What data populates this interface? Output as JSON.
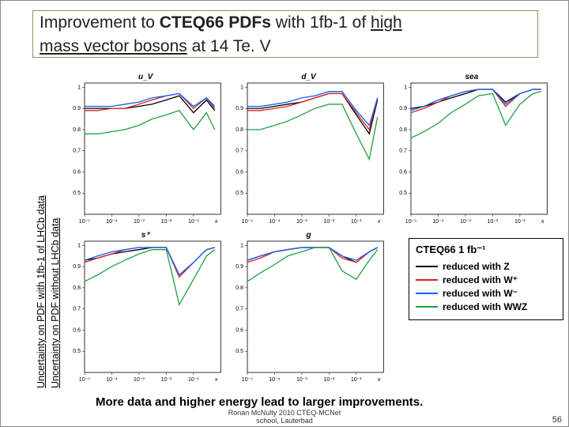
{
  "colors": {
    "accent_border": "#8a9a5b",
    "series": {
      "Z": "#000000",
      "Wplus": "#e02020",
      "Wminus": "#1060ff",
      "WWZ": "#20a040"
    },
    "plot_frame": "#000000",
    "background": "#ffffff"
  },
  "typography": {
    "title_fontsize_pt": 21,
    "axis_label_fontsize_pt": 7,
    "legend_fontsize_pt": 12,
    "bottom_note_fontsize_pt": 15,
    "vlabel_fontsize_pt": 12.5
  },
  "title": {
    "pre": "Improvement to ",
    "bold": "CTEQ66 PDFs",
    "mid1": " with 1fb-1 of ",
    "ul1": "high",
    "line2_ul": "mass vector bosons",
    "line2_rest": " at 14 Te. V"
  },
  "vlabels": {
    "l1": "Uncertainty on PDF with 1fb-1 of LHCb data",
    "l2": "Uncertainty on PDF without LHCb data"
  },
  "bottom_note": "More data and higher energy lead to larger improvements.",
  "footer_line1": "Ronan McNulty  2010 CTEQ-MCNet",
  "footer_line2": "school, Lauterbad",
  "page_number": "56",
  "legend": {
    "header": "CTEQ66 1 fb⁻¹",
    "items": [
      {
        "color_key": "Z",
        "label": "reduced with Z"
      },
      {
        "color_key": "Wplus",
        "label": "reduced with W⁺"
      },
      {
        "color_key": "Wminus",
        "label": "reduced with W⁻"
      },
      {
        "color_key": "WWZ",
        "label": "reduced with WWZ"
      }
    ]
  },
  "axes": {
    "x": {
      "type": "log",
      "min": 1e-05,
      "max": 1,
      "ticks": [
        1e-05,
        0.0001,
        0.001,
        0.01,
        0.1
      ],
      "ticklabels": [
        "10⁻⁵",
        "10⁻⁴",
        "10⁻³",
        "10⁻²",
        "10⁻¹"
      ],
      "label": "x"
    },
    "y": {
      "type": "linear",
      "min": 0.4,
      "max": 1.02,
      "ticks": [
        0.5,
        0.6,
        0.7,
        0.8,
        0.9,
        1.0
      ],
      "ticklabels": [
        "0.5",
        "0.6",
        "0.7",
        "0.8",
        "0.9",
        "1"
      ]
    }
  },
  "panels": [
    {
      "title": "u_V",
      "x": [
        1e-05,
        3e-05,
        0.0001,
        0.0003,
        0.001,
        0.003,
        0.01,
        0.03,
        0.1,
        0.3,
        0.6
      ],
      "series": {
        "Z": [
          0.9,
          0.9,
          0.9,
          0.9,
          0.91,
          0.92,
          0.94,
          0.96,
          0.88,
          0.94,
          0.89
        ],
        "Wplus": [
          0.89,
          0.89,
          0.9,
          0.9,
          0.92,
          0.94,
          0.96,
          0.97,
          0.9,
          0.95,
          0.9
        ],
        "Wminus": [
          0.91,
          0.91,
          0.91,
          0.92,
          0.93,
          0.95,
          0.96,
          0.97,
          0.91,
          0.95,
          0.91
        ],
        "WWZ": [
          0.78,
          0.78,
          0.79,
          0.8,
          0.82,
          0.85,
          0.87,
          0.89,
          0.8,
          0.88,
          0.8
        ]
      }
    },
    {
      "title": "d_V",
      "x": [
        1e-05,
        3e-05,
        0.0001,
        0.0003,
        0.001,
        0.003,
        0.01,
        0.03,
        0.1,
        0.3,
        0.6
      ],
      "series": {
        "Z": [
          0.9,
          0.9,
          0.91,
          0.92,
          0.93,
          0.95,
          0.97,
          0.97,
          0.87,
          0.78,
          0.94
        ],
        "Wplus": [
          0.89,
          0.89,
          0.9,
          0.91,
          0.93,
          0.95,
          0.97,
          0.97,
          0.88,
          0.8,
          0.95
        ],
        "Wminus": [
          0.91,
          0.91,
          0.92,
          0.93,
          0.95,
          0.96,
          0.98,
          0.98,
          0.89,
          0.82,
          0.95
        ],
        "WWZ": [
          0.8,
          0.8,
          0.82,
          0.84,
          0.87,
          0.9,
          0.92,
          0.92,
          0.78,
          0.66,
          0.86
        ]
      }
    },
    {
      "title": "sea",
      "x": [
        1e-05,
        3e-05,
        0.0001,
        0.0003,
        0.001,
        0.003,
        0.01,
        0.03,
        0.1,
        0.3,
        0.6
      ],
      "series": {
        "Z": [
          0.9,
          0.91,
          0.93,
          0.95,
          0.97,
          0.99,
          0.99,
          0.93,
          0.97,
          0.99,
          0.99
        ],
        "Wplus": [
          0.88,
          0.9,
          0.93,
          0.96,
          0.98,
          0.99,
          0.99,
          0.91,
          0.97,
          0.99,
          0.99
        ],
        "Wminus": [
          0.89,
          0.91,
          0.94,
          0.96,
          0.98,
          0.99,
          0.99,
          0.92,
          0.97,
          0.99,
          0.99
        ],
        "WWZ": [
          0.76,
          0.79,
          0.83,
          0.88,
          0.92,
          0.96,
          0.97,
          0.82,
          0.92,
          0.97,
          0.98
        ]
      }
    },
    {
      "title": "s⁺",
      "x": [
        1e-05,
        3e-05,
        0.0001,
        0.0003,
        0.001,
        0.003,
        0.01,
        0.03,
        0.1,
        0.3,
        0.6
      ],
      "series": {
        "Z": [
          0.93,
          0.94,
          0.96,
          0.97,
          0.98,
          0.99,
          0.99,
          0.86,
          0.92,
          0.98,
          0.99
        ],
        "Wplus": [
          0.92,
          0.94,
          0.96,
          0.98,
          0.99,
          0.99,
          0.99,
          0.85,
          0.92,
          0.98,
          0.99
        ],
        "Wminus": [
          0.93,
          0.95,
          0.97,
          0.98,
          0.99,
          0.99,
          0.99,
          0.86,
          0.92,
          0.98,
          0.99
        ],
        "WWZ": [
          0.83,
          0.86,
          0.9,
          0.93,
          0.96,
          0.98,
          0.98,
          0.72,
          0.84,
          0.95,
          0.98
        ]
      }
    },
    {
      "title": "g",
      "x": [
        1e-05,
        3e-05,
        0.0001,
        0.0003,
        0.001,
        0.003,
        0.01,
        0.03,
        0.1,
        0.3,
        0.6
      ],
      "series": {
        "Z": [
          0.93,
          0.95,
          0.97,
          0.98,
          0.99,
          0.99,
          0.99,
          0.95,
          0.92,
          0.97,
          0.99
        ],
        "Wplus": [
          0.92,
          0.94,
          0.97,
          0.98,
          0.99,
          0.99,
          0.99,
          0.94,
          0.92,
          0.97,
          0.99
        ],
        "Wminus": [
          0.93,
          0.95,
          0.97,
          0.98,
          0.99,
          0.99,
          0.99,
          0.95,
          0.93,
          0.97,
          0.99
        ],
        "WWZ": [
          0.83,
          0.87,
          0.91,
          0.95,
          0.97,
          0.99,
          0.99,
          0.88,
          0.84,
          0.93,
          0.98
        ]
      }
    },
    {
      "legend": true
    }
  ]
}
